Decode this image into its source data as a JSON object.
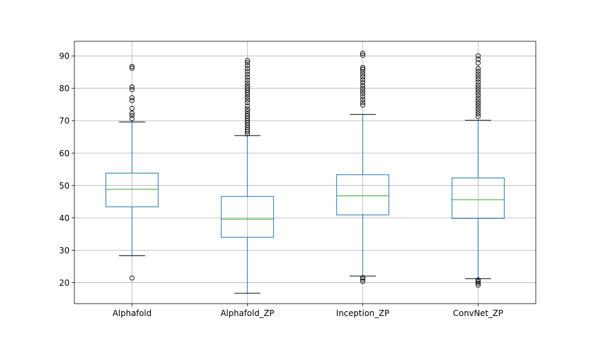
{
  "chart_data": {
    "type": "boxplot",
    "title": "",
    "xlabel": "",
    "ylabel": "",
    "ylim": [
      13.5,
      94.5
    ],
    "yticks": [
      20,
      30,
      40,
      50,
      60,
      70,
      80,
      90
    ],
    "grid": true,
    "categories": [
      "Alphafold",
      "Alphafold_ZP",
      "Inception_ZP",
      "ConvNet_ZP"
    ],
    "boxes": [
      {
        "name": "Alphafold",
        "whisker_low": 28.3,
        "q1": 43.4,
        "median": 48.8,
        "q3": 53.8,
        "whisker_high": 69.6,
        "outliers": [
          21.4,
          70.6,
          71.6,
          72.3,
          73.8,
          76.2,
          77.1,
          79.6,
          80.4,
          86.2,
          86.7
        ]
      },
      {
        "name": "Alphafold_ZP",
        "whisker_low": 16.7,
        "q1": 34.0,
        "median": 39.6,
        "q3": 46.6,
        "whisker_high": 65.4,
        "outliers": [
          65.9,
          66.6,
          67.2,
          67.9,
          68.6,
          69.3,
          70.0,
          70.7,
          71.4,
          72.1,
          72.9,
          73.6,
          74.5,
          75.6,
          76.4,
          77.2,
          78.0,
          78.7,
          79.4,
          80.1,
          80.8,
          81.6,
          82.5,
          83.4,
          84.3,
          85.2,
          86.1,
          87.0,
          87.9,
          88.6
        ]
      },
      {
        "name": "Inception_ZP",
        "whisker_low": 22.0,
        "q1": 40.9,
        "median": 46.8,
        "q3": 53.3,
        "whisker_high": 71.9,
        "outliers": [
          20.4,
          21.0,
          21.5,
          74.8,
          75.6,
          76.5,
          77.4,
          78.3,
          79.1,
          79.9,
          80.8,
          81.7,
          82.6,
          83.5,
          84.3,
          85.1,
          85.9,
          86.4,
          90.2,
          90.8
        ]
      },
      {
        "name": "ConvNet_ZP",
        "whisker_low": 21.2,
        "q1": 39.8,
        "median": 45.6,
        "q3": 52.3,
        "whisker_high": 70.1,
        "outliers": [
          19.2,
          19.8,
          20.3,
          20.8,
          71.3,
          72.1,
          72.9,
          73.7,
          74.5,
          75.3,
          76.1,
          76.9,
          77.8,
          78.6,
          79.4,
          80.2,
          81.0,
          81.9,
          82.8,
          83.6,
          84.4,
          85.3,
          86.1,
          87.8,
          89.0,
          90.0
        ]
      }
    ],
    "colors": {
      "box": "#1f77b4",
      "median": "#2ca02c",
      "cap": "#000000",
      "flier": "#000000",
      "grid": "#b0b0b0",
      "axis": "#000000"
    }
  }
}
